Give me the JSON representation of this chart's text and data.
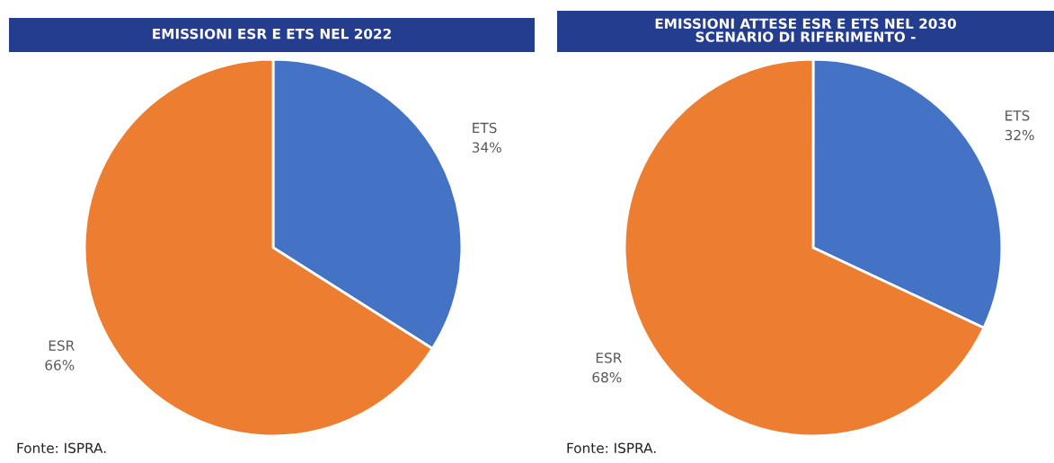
{
  "chart_data": [
    {
      "type": "pie",
      "title": "EMISSIONI ESR E ETS NEL 2022",
      "categories": [
        "ETS",
        "ESR"
      ],
      "values": [
        34,
        66
      ],
      "value_labels": [
        "34%",
        "66%"
      ],
      "colors": [
        "#4472c4",
        "#ed7d31"
      ],
      "annotations": [
        "Fonte: ISPRA."
      ]
    },
    {
      "type": "pie",
      "title": "EMISSIONI ATTESE ESR E ETS NEL 2030\nSCENARIO DI RIFERIMENTO -",
      "categories": [
        "ETS",
        "ESR"
      ],
      "values": [
        32,
        68
      ],
      "value_labels": [
        "32%",
        "68%"
      ],
      "colors": [
        "#4472c4",
        "#ed7d31"
      ],
      "annotations": [
        "Fonte: ISPRA."
      ]
    }
  ]
}
